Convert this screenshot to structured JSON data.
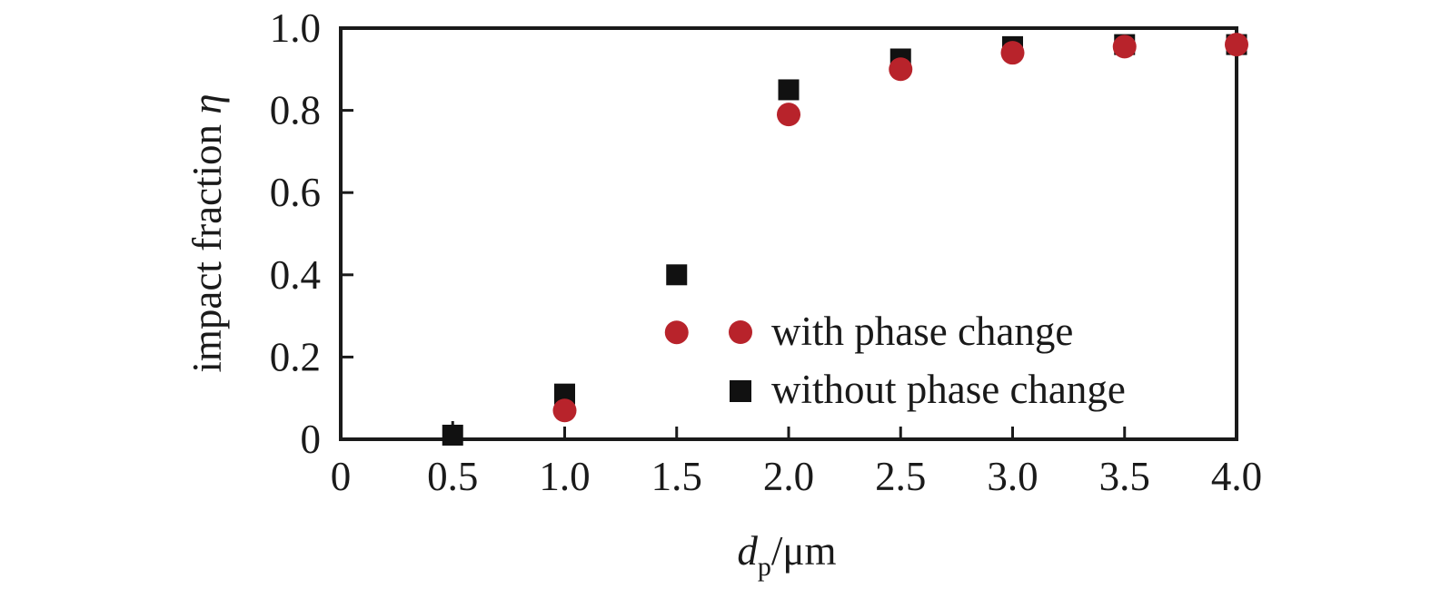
{
  "chart_data": {
    "type": "scatter",
    "title": "",
    "xlabel": "d_p/μm",
    "xlabel_parts": {
      "main": "d",
      "subscript": "p",
      "unit": "/μm"
    },
    "ylabel": "impact fraction η",
    "ylabel_parts": {
      "main": "impact fraction ",
      "symbol": "η"
    },
    "xlim": [
      0,
      4.0
    ],
    "ylim": [
      0,
      1.0
    ],
    "x_ticks": [
      0,
      0.5,
      1.0,
      1.5,
      2.0,
      2.5,
      3.0,
      3.5,
      4.0
    ],
    "x_tick_labels": [
      "0",
      "0.5",
      "1.0",
      "1.5",
      "2.0",
      "2.5",
      "3.0",
      "3.5",
      "4.0"
    ],
    "y_ticks": [
      0,
      0.2,
      0.4,
      0.6,
      0.8,
      1.0
    ],
    "y_tick_labels": [
      "0",
      "0.2",
      "0.4",
      "0.6",
      "0.8",
      "1.0"
    ],
    "grid": false,
    "legend_position": "lower right (inside)",
    "series": [
      {
        "name": "with phase change",
        "marker": "circle",
        "color": "#B8232B",
        "x": [
          1.0,
          1.5,
          2.0,
          2.5,
          3.0,
          3.5,
          4.0
        ],
        "y": [
          0.07,
          0.26,
          0.79,
          0.9,
          0.94,
          0.955,
          0.96
        ]
      },
      {
        "name": "without phase change",
        "marker": "square",
        "color": "#111111",
        "x": [
          0.5,
          1.0,
          1.5,
          2.0,
          2.5,
          3.0,
          3.5,
          4.0
        ],
        "y": [
          0.01,
          0.11,
          0.4,
          0.85,
          0.925,
          0.955,
          0.96,
          0.96
        ]
      }
    ]
  },
  "legend": {
    "items": [
      {
        "label": "with phase change",
        "marker": "circle",
        "color": "#B8232B"
      },
      {
        "label": "without phase change",
        "marker": "square",
        "color": "#111111"
      }
    ]
  },
  "colors": {
    "axis": "#1a1a1a",
    "with_phase_change": "#B8232B",
    "without_phase_change": "#111111",
    "background": "#ffffff"
  }
}
